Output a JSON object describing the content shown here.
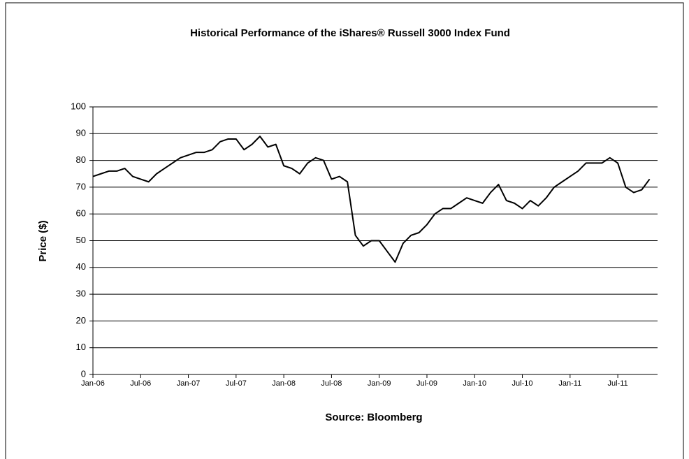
{
  "chart_data": {
    "type": "line",
    "title": "Historical Performance of the iShares® Russell 3000 Index Fund",
    "y_label": "Price ($)",
    "x_label": "Source: Bloomberg",
    "categories": [
      "Jan-06",
      null,
      null,
      null,
      null,
      null,
      "Jul-06",
      null,
      null,
      null,
      null,
      null,
      "Jan-07",
      null,
      null,
      null,
      null,
      null,
      "Jul-07",
      null,
      null,
      null,
      null,
      null,
      "Jan-08",
      null,
      null,
      null,
      null,
      null,
      "Jul-08",
      null,
      null,
      null,
      null,
      null,
      "Jan-09",
      null,
      null,
      null,
      null,
      null,
      "Jul-09",
      null,
      null,
      null,
      null,
      null,
      "Jan-10",
      null,
      null,
      null,
      null,
      null,
      "Jul-10",
      null,
      null,
      null,
      null,
      null,
      "Jan-11",
      null,
      null,
      null,
      null,
      null,
      "Jul-11",
      null,
      null,
      null,
      null
    ],
    "series": [
      {
        "name": "Price",
        "color": "#000000",
        "values": [
          74,
          75,
          76,
          76,
          77,
          74,
          73,
          72,
          75,
          77,
          79,
          81,
          82,
          83,
          83,
          84,
          87,
          88,
          88,
          84,
          86,
          89,
          85,
          86,
          78,
          77,
          75,
          79,
          81,
          80,
          73,
          74,
          72,
          52,
          48,
          50,
          50,
          46,
          42,
          49,
          52,
          53,
          56,
          60,
          62,
          62,
          64,
          66,
          65,
          64,
          68,
          71,
          65,
          64,
          62,
          65,
          63,
          66,
          70,
          72,
          74,
          76,
          79,
          79,
          79,
          81,
          79,
          70,
          68,
          69,
          73
        ]
      }
    ],
    "ylim": [
      0,
      100
    ],
    "yticks": [
      0,
      10,
      20,
      30,
      40,
      50,
      60,
      70,
      80,
      90,
      100
    ],
    "grid": true
  }
}
